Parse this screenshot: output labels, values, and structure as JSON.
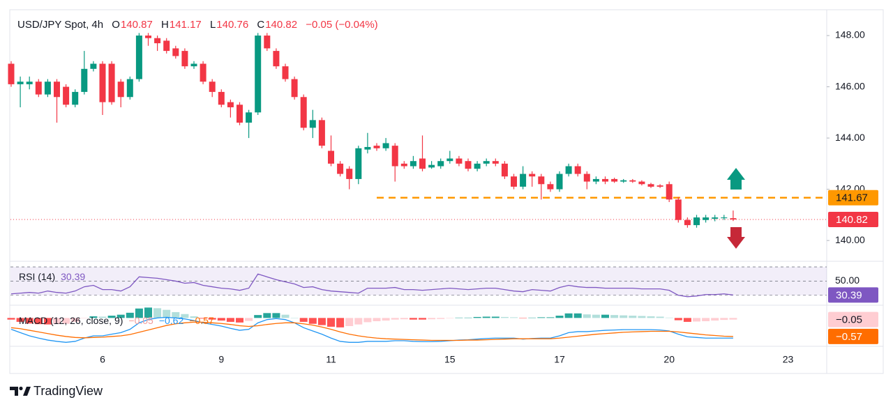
{
  "chart_data": {
    "type": "candlestick",
    "title": "USD/JPY Spot, 4h",
    "legend": {
      "labels": [
        "O",
        "H",
        "L",
        "C"
      ],
      "values": [
        140.87,
        141.17,
        140.76,
        140.82
      ],
      "change": "−0.05 (−0.04%)"
    },
    "categories": [
      null,
      null,
      null,
      null,
      null,
      null,
      null,
      null,
      null,
      null,
      "6",
      null,
      null,
      null,
      null,
      null,
      null,
      null,
      null,
      null,
      null,
      null,
      null,
      "9",
      null,
      null,
      null,
      null,
      null,
      null,
      null,
      null,
      null,
      null,
      null,
      "11",
      null,
      null,
      null,
      null,
      null,
      null,
      null,
      null,
      null,
      null,
      null,
      null,
      "15",
      null,
      null,
      null,
      null,
      null,
      null,
      null,
      null,
      null,
      null,
      null,
      "17",
      null,
      null,
      null,
      null,
      null,
      null,
      null,
      null,
      null,
      null,
      null,
      "20",
      null,
      null,
      null,
      null,
      null,
      null,
      null,
      null,
      null,
      null,
      null,
      null,
      "23"
    ],
    "open": [
      146.9,
      146.1,
      146.1,
      146.2,
      145.7,
      146.2,
      146.0,
      145.3,
      145.8,
      146.7,
      146.9,
      146.9,
      146.2,
      145.6,
      146.3,
      148.0,
      147.9,
      147.8,
      147.5,
      147.4,
      146.8,
      146.9,
      146.2,
      145.8,
      145.4,
      145.3,
      144.6,
      145.0,
      148.0,
      147.4,
      146.8,
      146.3,
      145.6,
      144.4,
      144.7,
      143.5,
      143.0,
      142.8,
      142.4,
      143.55,
      143.7,
      143.6,
      143.7,
      143.0,
      142.9,
      143.2,
      142.85,
      142.9,
      143.1,
      143.2,
      143.1,
      142.8,
      143.0,
      143.1,
      143.0,
      142.5,
      142.1,
      142.6,
      142.5,
      142.2,
      142.0,
      142.6,
      142.9,
      142.6,
      142.3,
      142.4,
      142.4,
      142.3,
      142.35,
      142.3,
      142.2,
      142.15,
      142.2,
      141.6,
      140.8,
      140.6,
      140.8,
      140.85,
      140.87,
      140.87,
      null,
      null,
      null,
      null,
      null,
      null
    ],
    "high": [
      147.0,
      146.4,
      146.4,
      146.3,
      146.3,
      146.3,
      146.1,
      145.9,
      147.4,
      147.0,
      147.0,
      147.0,
      146.3,
      146.4,
      148.1,
      148.1,
      148.0,
      147.9,
      147.6,
      147.5,
      147.0,
      147.0,
      146.3,
      145.9,
      145.5,
      145.4,
      145.1,
      148.1,
      148.1,
      147.5,
      146.9,
      146.4,
      145.7,
      145.1,
      144.8,
      144.1,
      143.1,
      142.9,
      143.7,
      144.2,
      143.8,
      144.0,
      143.8,
      143.1,
      143.3,
      144.1,
      143.1,
      143.2,
      143.5,
      143.3,
      143.2,
      143.1,
      143.2,
      143.2,
      143.1,
      142.6,
      142.9,
      142.7,
      142.6,
      142.3,
      142.7,
      143.0,
      143.0,
      142.7,
      142.5,
      142.5,
      142.45,
      142.4,
      142.4,
      142.35,
      142.25,
      142.2,
      142.3,
      141.7,
      140.9,
      141.0,
      141.0,
      141.0,
      141.0,
      141.17,
      null,
      null,
      null,
      null,
      null,
      null
    ],
    "low": [
      146.0,
      145.2,
      145.9,
      145.6,
      145.6,
      144.6,
      145.2,
      145.2,
      145.7,
      146.6,
      144.9,
      145.3,
      145.2,
      145.5,
      146.2,
      147.6,
      147.4,
      147.3,
      147.1,
      146.7,
      146.7,
      146.1,
      145.6,
      145.2,
      144.8,
      144.5,
      144.0,
      144.9,
      147.4,
      146.7,
      146.2,
      145.5,
      144.3,
      144.0,
      143.6,
      142.9,
      142.5,
      142.0,
      142.2,
      143.4,
      143.5,
      143.5,
      142.3,
      142.8,
      142.8,
      142.7,
      142.8,
      142.8,
      143.0,
      142.9,
      142.7,
      142.7,
      142.9,
      142.9,
      142.4,
      142.0,
      142.0,
      142.1,
      141.6,
      141.9,
      141.9,
      142.5,
      142.5,
      142.0,
      142.2,
      142.2,
      142.25,
      142.25,
      142.25,
      142.15,
      142.05,
      142.05,
      141.5,
      140.7,
      140.5,
      140.5,
      140.7,
      140.75,
      140.8,
      140.76,
      null,
      null,
      null,
      null,
      null,
      null
    ],
    "close": [
      146.1,
      146.2,
      146.2,
      145.7,
      146.2,
      145.6,
      145.3,
      145.8,
      146.7,
      146.9,
      145.4,
      145.4,
      145.6,
      146.3,
      148.0,
      147.9,
      147.7,
      147.4,
      147.2,
      146.8,
      146.9,
      146.2,
      145.8,
      145.3,
      145.2,
      144.6,
      145.0,
      148.0,
      147.5,
      146.8,
      146.3,
      145.6,
      144.4,
      144.7,
      143.7,
      143.0,
      142.6,
      142.4,
      143.6,
      143.65,
      143.6,
      143.8,
      142.9,
      142.9,
      143.1,
      142.8,
      142.95,
      143.1,
      143.2,
      143.0,
      142.8,
      143.0,
      143.1,
      143.0,
      142.5,
      142.1,
      142.6,
      142.5,
      142.2,
      142.0,
      142.6,
      142.9,
      142.6,
      142.3,
      142.4,
      142.3,
      142.3,
      142.35,
      142.3,
      142.2,
      142.1,
      142.1,
      141.6,
      140.8,
      140.6,
      140.9,
      140.9,
      140.9,
      140.9,
      140.82,
      null,
      null,
      null,
      null,
      null,
      null
    ],
    "up_color": "#089981",
    "down_color": "#f23645",
    "ylim": [
      139.27,
      148.98
    ],
    "yticks": [
      {
        "value": 140,
        "label": "140.00"
      },
      {
        "value": 142,
        "label": "142.00"
      },
      {
        "value": 144,
        "label": "144.00"
      },
      {
        "value": 146,
        "label": "146.00"
      },
      {
        "value": 148,
        "label": "148.00"
      }
    ],
    "level": {
      "value": 141.67,
      "color": "#ff9800"
    },
    "rsi": {
      "title": "RSI (14)",
      "color": "#7e57c2",
      "values": [
        32,
        33,
        34,
        33,
        36,
        34,
        33,
        36,
        42,
        44,
        38,
        38,
        36,
        42,
        56,
        55,
        54,
        52,
        50,
        47,
        48,
        44,
        42,
        40,
        39,
        37,
        40,
        60,
        56,
        52,
        49,
        46,
        41,
        42,
        38,
        36,
        35,
        34,
        33,
        40,
        40,
        40,
        41,
        38,
        38,
        37,
        38,
        39,
        40,
        39,
        38,
        39,
        40,
        40,
        38,
        36,
        35,
        38,
        37,
        36,
        41,
        44,
        42,
        41,
        41,
        40,
        40,
        40,
        40,
        39,
        39,
        39,
        37,
        30,
        28,
        29,
        31,
        31,
        32,
        30.39,
        null,
        null,
        null,
        null,
        null,
        null
      ],
      "ylim": [
        17,
        75
      ],
      "band": [
        30,
        70
      ],
      "yticks": [
        {
          "value": 50,
          "label": "50.00"
        }
      ]
    },
    "macd": {
      "title": "MACD (12, 26, close, 9)",
      "ylim": [
        -0.85,
        0.35
      ],
      "macd_color": "#2196f3",
      "signal_color": "#ff6d00",
      "macd": [
        -0.35,
        -0.45,
        -0.55,
        -0.62,
        -0.68,
        -0.72,
        -0.75,
        -0.72,
        -0.62,
        -0.55,
        -0.55,
        -0.5,
        -0.45,
        -0.35,
        -0.15,
        -0.05,
        0.0,
        0.02,
        0.0,
        -0.03,
        -0.08,
        -0.15,
        -0.2,
        -0.25,
        -0.32,
        -0.38,
        -0.35,
        -0.15,
        -0.05,
        -0.02,
        -0.05,
        -0.15,
        -0.3,
        -0.4,
        -0.5,
        -0.62,
        -0.72,
        -0.75,
        -0.75,
        -0.72,
        -0.72,
        -0.72,
        -0.7,
        -0.7,
        -0.72,
        -0.73,
        -0.73,
        -0.72,
        -0.7,
        -0.68,
        -0.67,
        -0.65,
        -0.63,
        -0.62,
        -0.62,
        -0.62,
        -0.65,
        -0.63,
        -0.62,
        -0.62,
        -0.55,
        -0.45,
        -0.42,
        -0.42,
        -0.4,
        -0.38,
        -0.37,
        -0.36,
        -0.36,
        -0.36,
        -0.36,
        -0.37,
        -0.4,
        -0.5,
        -0.58,
        -0.6,
        -0.62,
        -0.62,
        -0.62,
        -0.62,
        null,
        null,
        null,
        null,
        null,
        null
      ],
      "signal": [
        -0.3,
        -0.33,
        -0.38,
        -0.43,
        -0.48,
        -0.53,
        -0.57,
        -0.6,
        -0.61,
        -0.6,
        -0.59,
        -0.57,
        -0.55,
        -0.51,
        -0.44,
        -0.37,
        -0.3,
        -0.23,
        -0.18,
        -0.15,
        -0.13,
        -0.13,
        -0.15,
        -0.17,
        -0.2,
        -0.24,
        -0.26,
        -0.24,
        -0.2,
        -0.17,
        -0.15,
        -0.15,
        -0.18,
        -0.22,
        -0.28,
        -0.35,
        -0.43,
        -0.5,
        -0.55,
        -0.59,
        -0.62,
        -0.64,
        -0.65,
        -0.66,
        -0.67,
        -0.68,
        -0.69,
        -0.69,
        -0.69,
        -0.69,
        -0.68,
        -0.68,
        -0.67,
        -0.66,
        -0.65,
        -0.64,
        -0.64,
        -0.64,
        -0.64,
        -0.64,
        -0.62,
        -0.59,
        -0.56,
        -0.53,
        -0.5,
        -0.48,
        -0.46,
        -0.44,
        -0.43,
        -0.42,
        -0.41,
        -0.41,
        -0.41,
        -0.43,
        -0.46,
        -0.49,
        -0.52,
        -0.54,
        -0.56,
        -0.57,
        null,
        null,
        null,
        null,
        null,
        null
      ],
      "histogram": [
        -0.05,
        -0.12,
        -0.17,
        -0.19,
        -0.2,
        -0.19,
        -0.18,
        -0.12,
        -0.01,
        0.05,
        0.04,
        0.07,
        0.1,
        0.16,
        0.29,
        0.32,
        0.3,
        0.25,
        0.18,
        0.12,
        0.05,
        -0.02,
        -0.05,
        -0.08,
        -0.12,
        -0.14,
        -0.09,
        0.09,
        0.15,
        0.15,
        0.1,
        0.0,
        -0.12,
        -0.18,
        -0.22,
        -0.27,
        -0.29,
        -0.25,
        -0.2,
        -0.13,
        -0.1,
        -0.08,
        -0.05,
        -0.04,
        -0.05,
        -0.05,
        -0.04,
        -0.03,
        -0.01,
        0.01,
        0.01,
        0.03,
        0.04,
        0.04,
        0.03,
        0.02,
        -0.01,
        0.01,
        0.02,
        0.02,
        0.07,
        0.14,
        0.14,
        0.11,
        0.1,
        0.1,
        0.09,
        0.08,
        0.07,
        0.06,
        0.05,
        0.04,
        0.01,
        -0.07,
        -0.12,
        -0.11,
        -0.1,
        -0.08,
        -0.06,
        -0.05,
        null,
        null,
        null,
        null,
        null,
        null
      ],
      "value_labels": {
        "histogram": "−0.05",
        "macd": "−0.62",
        "signal": "−0.57"
      }
    }
  },
  "brand": "TradingView"
}
